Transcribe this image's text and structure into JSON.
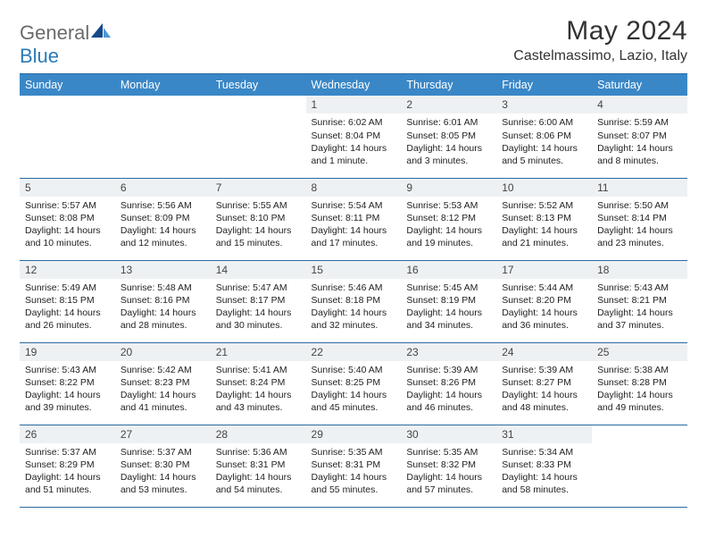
{
  "logo": {
    "part1": "General",
    "part2": "Blue"
  },
  "title": "May 2024",
  "location": "Castelmassimo, Lazio, Italy",
  "colors": {
    "header_bg": "#3a87c7",
    "header_text": "#ffffff",
    "daynum_bg": "#eef1f3",
    "row_border": "#2a6aa0",
    "logo_gray": "#6b6b6b",
    "logo_blue": "#2a7ab8",
    "sail_dark": "#14498a",
    "sail_light": "#4a9ad4"
  },
  "day_headers": [
    "Sunday",
    "Monday",
    "Tuesday",
    "Wednesday",
    "Thursday",
    "Friday",
    "Saturday"
  ],
  "weeks": [
    [
      {
        "n": "",
        "lines": []
      },
      {
        "n": "",
        "lines": []
      },
      {
        "n": "",
        "lines": []
      },
      {
        "n": "1",
        "lines": [
          "Sunrise: 6:02 AM",
          "Sunset: 8:04 PM",
          "Daylight: 14 hours and 1 minute."
        ]
      },
      {
        "n": "2",
        "lines": [
          "Sunrise: 6:01 AM",
          "Sunset: 8:05 PM",
          "Daylight: 14 hours and 3 minutes."
        ]
      },
      {
        "n": "3",
        "lines": [
          "Sunrise: 6:00 AM",
          "Sunset: 8:06 PM",
          "Daylight: 14 hours and 5 minutes."
        ]
      },
      {
        "n": "4",
        "lines": [
          "Sunrise: 5:59 AM",
          "Sunset: 8:07 PM",
          "Daylight: 14 hours and 8 minutes."
        ]
      }
    ],
    [
      {
        "n": "5",
        "lines": [
          "Sunrise: 5:57 AM",
          "Sunset: 8:08 PM",
          "Daylight: 14 hours and 10 minutes."
        ]
      },
      {
        "n": "6",
        "lines": [
          "Sunrise: 5:56 AM",
          "Sunset: 8:09 PM",
          "Daylight: 14 hours and 12 minutes."
        ]
      },
      {
        "n": "7",
        "lines": [
          "Sunrise: 5:55 AM",
          "Sunset: 8:10 PM",
          "Daylight: 14 hours and 15 minutes."
        ]
      },
      {
        "n": "8",
        "lines": [
          "Sunrise: 5:54 AM",
          "Sunset: 8:11 PM",
          "Daylight: 14 hours and 17 minutes."
        ]
      },
      {
        "n": "9",
        "lines": [
          "Sunrise: 5:53 AM",
          "Sunset: 8:12 PM",
          "Daylight: 14 hours and 19 minutes."
        ]
      },
      {
        "n": "10",
        "lines": [
          "Sunrise: 5:52 AM",
          "Sunset: 8:13 PM",
          "Daylight: 14 hours and 21 minutes."
        ]
      },
      {
        "n": "11",
        "lines": [
          "Sunrise: 5:50 AM",
          "Sunset: 8:14 PM",
          "Daylight: 14 hours and 23 minutes."
        ]
      }
    ],
    [
      {
        "n": "12",
        "lines": [
          "Sunrise: 5:49 AM",
          "Sunset: 8:15 PM",
          "Daylight: 14 hours and 26 minutes."
        ]
      },
      {
        "n": "13",
        "lines": [
          "Sunrise: 5:48 AM",
          "Sunset: 8:16 PM",
          "Daylight: 14 hours and 28 minutes."
        ]
      },
      {
        "n": "14",
        "lines": [
          "Sunrise: 5:47 AM",
          "Sunset: 8:17 PM",
          "Daylight: 14 hours and 30 minutes."
        ]
      },
      {
        "n": "15",
        "lines": [
          "Sunrise: 5:46 AM",
          "Sunset: 8:18 PM",
          "Daylight: 14 hours and 32 minutes."
        ]
      },
      {
        "n": "16",
        "lines": [
          "Sunrise: 5:45 AM",
          "Sunset: 8:19 PM",
          "Daylight: 14 hours and 34 minutes."
        ]
      },
      {
        "n": "17",
        "lines": [
          "Sunrise: 5:44 AM",
          "Sunset: 8:20 PM",
          "Daylight: 14 hours and 36 minutes."
        ]
      },
      {
        "n": "18",
        "lines": [
          "Sunrise: 5:43 AM",
          "Sunset: 8:21 PM",
          "Daylight: 14 hours and 37 minutes."
        ]
      }
    ],
    [
      {
        "n": "19",
        "lines": [
          "Sunrise: 5:43 AM",
          "Sunset: 8:22 PM",
          "Daylight: 14 hours and 39 minutes."
        ]
      },
      {
        "n": "20",
        "lines": [
          "Sunrise: 5:42 AM",
          "Sunset: 8:23 PM",
          "Daylight: 14 hours and 41 minutes."
        ]
      },
      {
        "n": "21",
        "lines": [
          "Sunrise: 5:41 AM",
          "Sunset: 8:24 PM",
          "Daylight: 14 hours and 43 minutes."
        ]
      },
      {
        "n": "22",
        "lines": [
          "Sunrise: 5:40 AM",
          "Sunset: 8:25 PM",
          "Daylight: 14 hours and 45 minutes."
        ]
      },
      {
        "n": "23",
        "lines": [
          "Sunrise: 5:39 AM",
          "Sunset: 8:26 PM",
          "Daylight: 14 hours and 46 minutes."
        ]
      },
      {
        "n": "24",
        "lines": [
          "Sunrise: 5:39 AM",
          "Sunset: 8:27 PM",
          "Daylight: 14 hours and 48 minutes."
        ]
      },
      {
        "n": "25",
        "lines": [
          "Sunrise: 5:38 AM",
          "Sunset: 8:28 PM",
          "Daylight: 14 hours and 49 minutes."
        ]
      }
    ],
    [
      {
        "n": "26",
        "lines": [
          "Sunrise: 5:37 AM",
          "Sunset: 8:29 PM",
          "Daylight: 14 hours and 51 minutes."
        ]
      },
      {
        "n": "27",
        "lines": [
          "Sunrise: 5:37 AM",
          "Sunset: 8:30 PM",
          "Daylight: 14 hours and 53 minutes."
        ]
      },
      {
        "n": "28",
        "lines": [
          "Sunrise: 5:36 AM",
          "Sunset: 8:31 PM",
          "Daylight: 14 hours and 54 minutes."
        ]
      },
      {
        "n": "29",
        "lines": [
          "Sunrise: 5:35 AM",
          "Sunset: 8:31 PM",
          "Daylight: 14 hours and 55 minutes."
        ]
      },
      {
        "n": "30",
        "lines": [
          "Sunrise: 5:35 AM",
          "Sunset: 8:32 PM",
          "Daylight: 14 hours and 57 minutes."
        ]
      },
      {
        "n": "31",
        "lines": [
          "Sunrise: 5:34 AM",
          "Sunset: 8:33 PM",
          "Daylight: 14 hours and 58 minutes."
        ]
      },
      {
        "n": "",
        "lines": []
      }
    ]
  ]
}
